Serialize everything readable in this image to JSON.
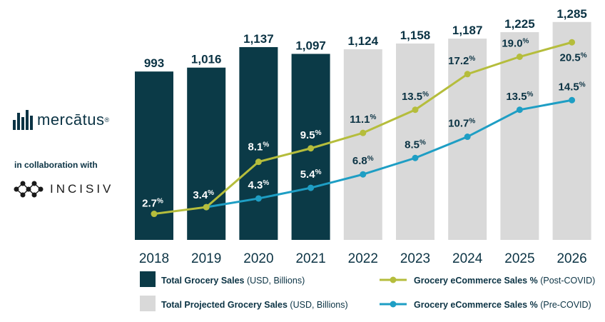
{
  "logos": {
    "brand": "mercātus",
    "registered_mark": "®",
    "collaboration_text": "in collaboration with",
    "partner": "INCISIV"
  },
  "colors": {
    "actual_bar": "#0b3a47",
    "projected_bar": "#d9d9d9",
    "post_covid_line": "#b5bd3c",
    "pre_covid_line": "#1e9ec4",
    "label_text": "#0b3344"
  },
  "chart_data": {
    "type": "bar",
    "title": "",
    "categories": [
      "2018",
      "2019",
      "2020",
      "2021",
      "2022",
      "2023",
      "2024",
      "2025",
      "2026"
    ],
    "ylim": [
      0,
      1300
    ],
    "series": [
      {
        "name": "Total Grocery Sales",
        "type": "bar",
        "values": [
          993,
          1016,
          1137,
          1097,
          null,
          null,
          null,
          null,
          null
        ],
        "labels": [
          "993",
          "1,016",
          "1,137",
          "1,097",
          "",
          "",
          "",
          "",
          ""
        ]
      },
      {
        "name": "Total Projected Grocery Sales",
        "type": "bar",
        "values": [
          null,
          null,
          null,
          null,
          1124,
          1158,
          1187,
          1225,
          1285
        ],
        "labels": [
          "",
          "",
          "",
          "",
          "1,124",
          "1,158",
          "1,187",
          "1,225",
          "1,285"
        ]
      },
      {
        "name": "Grocery eCommerce Sales % (Post-COVID)",
        "type": "line",
        "values": [
          2.7,
          3.4,
          8.1,
          9.5,
          11.1,
          13.5,
          17.2,
          19.0,
          20.5
        ]
      },
      {
        "name": "Grocery eCommerce Sales % (Pre-COVID)",
        "type": "line",
        "values": [
          null,
          3.4,
          4.3,
          5.4,
          6.8,
          8.5,
          10.7,
          13.5,
          14.5
        ]
      }
    ],
    "pct_ylim": [
      0,
      22
    ],
    "pct_labels": [
      {
        "series": "post",
        "index": 0,
        "num": "2.7",
        "sym": "%"
      },
      {
        "series": "post",
        "index": 1,
        "num": "3.4",
        "sym": "%"
      },
      {
        "series": "post",
        "index": 2,
        "num": "8.1",
        "sym": "%"
      },
      {
        "series": "post",
        "index": 3,
        "num": "9.5",
        "sym": "%"
      },
      {
        "series": "post",
        "index": 4,
        "num": "11.1",
        "sym": "%"
      },
      {
        "series": "post",
        "index": 5,
        "num": "13.5",
        "sym": "%"
      },
      {
        "series": "post",
        "index": 6,
        "num": "17.2",
        "sym": "%"
      },
      {
        "series": "post",
        "index": 7,
        "num": "19.0",
        "sym": "%"
      },
      {
        "series": "post",
        "index": 8,
        "num": "20.5",
        "sym": "%"
      },
      {
        "series": "pre",
        "index": 2,
        "num": "4.3",
        "sym": "%"
      },
      {
        "series": "pre",
        "index": 3,
        "num": "5.4",
        "sym": "%"
      },
      {
        "series": "pre",
        "index": 4,
        "num": "6.8",
        "sym": "%"
      },
      {
        "series": "pre",
        "index": 5,
        "num": "8.5",
        "sym": "%"
      },
      {
        "series": "pre",
        "index": 6,
        "num": "10.7",
        "sym": "%"
      },
      {
        "series": "pre",
        "index": 7,
        "num": "13.5",
        "sym": "%"
      },
      {
        "series": "pre",
        "index": 8,
        "num": "14.5",
        "sym": "%"
      }
    ],
    "legend": [
      {
        "kind": "bar-actual",
        "bold": "Total Grocery Sales",
        "normal": " (USD, Billions)"
      },
      {
        "kind": "line-post",
        "bold": "Grocery eCommerce Sales %",
        "normal": " (Post-COVID)"
      },
      {
        "kind": "bar-projected",
        "bold": "Total Projected Grocery Sales",
        "normal": " (USD, Billions)"
      },
      {
        "kind": "line-pre",
        "bold": "Grocery eCommerce Sales %",
        "normal": " (Pre-COVID)"
      }
    ],
    "legend_position": "bottom"
  }
}
